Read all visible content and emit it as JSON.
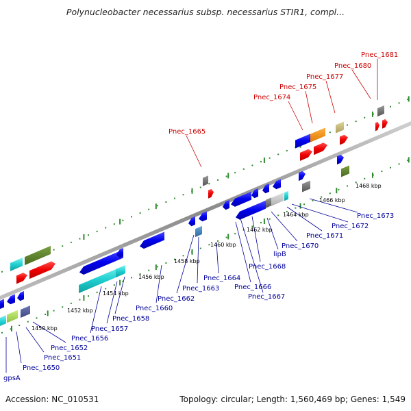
{
  "title": "Polynucleobacter necessarius subsp. necessarius STIR1, compl...",
  "footer": {
    "accession": "Accession: NC_010531",
    "summary": "Topology: circular; Length: 1,560,469 bp; Genes: 1,549"
  },
  "colors": {
    "forward_label": "#cc0000",
    "reverse_label": "#000099",
    "backbone": "#999999",
    "tick": "#2e8b2e"
  },
  "scale_labels": [
    "1450 kbp",
    "1452 kbp",
    "1454 kbp",
    "1456 kbp",
    "1458 kbp",
    "1460 kbp",
    "1462 kbp",
    "1464 kbp",
    "1466 kbp",
    "1468 kbp"
  ],
  "forward_labels": [
    "Pnec_1665",
    "Pnec_1674",
    "Pnec_1675",
    "Pnec_1677",
    "Pnec_1680",
    "Pnec_1681"
  ],
  "reverse_labels": [
    "gpsA",
    "Pnec_1650",
    "Pnec_1651",
    "Pnec_1652",
    "Pnec_1656",
    "Pnec_1657",
    "Pnec_1658",
    "Pnec_1660",
    "Pnec_1662",
    "Pnec_1663",
    "Pnec_1664",
    "Pnec_1666",
    "Pnec_1667",
    "Pnec_1668",
    "lipB",
    "Pnec_1670",
    "Pnec_1671",
    "Pnec_1672",
    "Pnec_1673"
  ]
}
